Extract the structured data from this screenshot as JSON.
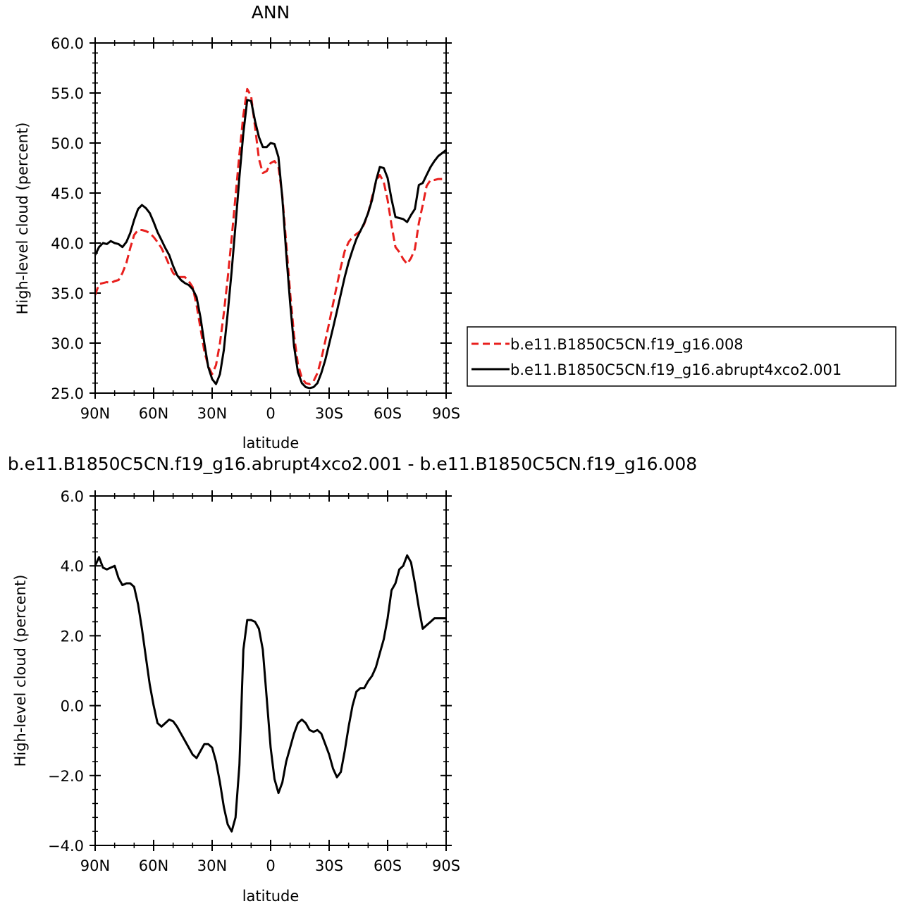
{
  "chart_data": [
    {
      "type": "line",
      "title": "ANN",
      "xlabel": "latitude",
      "ylabel": "High-level cloud (percent)",
      "xlim": [
        90,
        -90
      ],
      "ylim": [
        25,
        60
      ],
      "xticks": [
        90,
        60,
        30,
        0,
        -30,
        -60,
        -90
      ],
      "xtick_labels": [
        "90N",
        "60N",
        "30N",
        "0",
        "30S",
        "60S",
        "90S"
      ],
      "yticks": [
        25,
        30,
        35,
        40,
        45,
        50,
        55,
        60
      ],
      "ytick_labels": [
        "25.0",
        "30.0",
        "35.0",
        "40.0",
        "45.0",
        "50.0",
        "55.0",
        "60.0"
      ],
      "grid": false,
      "legend_position": "right",
      "series": [
        {
          "name": "b.e11.B1850C5CN.f19_g16.008",
          "color": "#e8201e",
          "dash": "dashed",
          "x": [
            90,
            88,
            86,
            84,
            82,
            80,
            78,
            76,
            74,
            72,
            70,
            68,
            66,
            64,
            62,
            60,
            58,
            56,
            54,
            52,
            50,
            48,
            46,
            44,
            42,
            40,
            38,
            36,
            34,
            32,
            30,
            28,
            26,
            24,
            22,
            20,
            18,
            16,
            14,
            12,
            10,
            8,
            6,
            4,
            2,
            0,
            -2,
            -4,
            -6,
            -8,
            -10,
            -12,
            -14,
            -16,
            -18,
            -20,
            -22,
            -24,
            -26,
            -28,
            -30,
            -32,
            -34,
            -36,
            -38,
            -40,
            -42,
            -44,
            -46,
            -48,
            -50,
            -52,
            -54,
            -56,
            -58,
            -60,
            -62,
            -64,
            -66,
            -68,
            -70,
            -72,
            -74,
            -76,
            -78,
            -80,
            -82,
            -84,
            -86,
            -88,
            -90
          ],
          "y": [
            34.8,
            35.9,
            36.0,
            36.1,
            36.0,
            36.2,
            36.3,
            37.0,
            38.0,
            39.5,
            40.8,
            41.3,
            41.3,
            41.2,
            41.0,
            40.6,
            40.1,
            39.5,
            38.7,
            37.8,
            37.0,
            36.6,
            36.6,
            36.6,
            36.2,
            35.6,
            33.8,
            31.5,
            29.2,
            27.7,
            26.9,
            27.8,
            30.0,
            33.0,
            36.5,
            40.5,
            44.7,
            48.9,
            52.8,
            55.4,
            54.7,
            51.6,
            48.4,
            47.0,
            47.2,
            48.0,
            48.2,
            47.6,
            44.7,
            40.0,
            35.0,
            30.8,
            27.9,
            26.5,
            26.0,
            25.9,
            26.2,
            27.0,
            28.4,
            30.2,
            32.0,
            33.9,
            35.8,
            37.6,
            39.2,
            40.1,
            40.6,
            40.9,
            41.2,
            41.9,
            43.0,
            44.6,
            46.1,
            46.8,
            46.1,
            44.3,
            41.8,
            39.6,
            39.1,
            38.4,
            37.9,
            38.5,
            39.4,
            42.0,
            43.8,
            45.7,
            46.3,
            46.3,
            46.4,
            46.4,
            46.4
          ]
        },
        {
          "name": "b.e11.B1850C5CN.f19_g16.abrupt4xco2.001",
          "color": "#000000",
          "dash": "solid",
          "x": [
            90,
            88,
            86,
            84,
            82,
            80,
            78,
            76,
            74,
            72,
            70,
            68,
            66,
            64,
            62,
            60,
            58,
            56,
            54,
            52,
            50,
            48,
            46,
            44,
            42,
            40,
            38,
            36,
            34,
            32,
            30,
            28,
            26,
            24,
            22,
            20,
            18,
            16,
            14,
            12,
            10,
            8,
            6,
            4,
            2,
            0,
            -2,
            -4,
            -6,
            -8,
            -10,
            -12,
            -14,
            -16,
            -18,
            -20,
            -22,
            -24,
            -26,
            -28,
            -30,
            -32,
            -34,
            -36,
            -38,
            -40,
            -42,
            -44,
            -46,
            -48,
            -50,
            -52,
            -54,
            -56,
            -58,
            -60,
            -62,
            -64,
            -66,
            -68,
            -70,
            -72,
            -74,
            -76,
            -78,
            -80,
            -82,
            -84,
            -86,
            -88,
            -90
          ],
          "y": [
            38.8,
            39.6,
            40.0,
            39.9,
            40.2,
            40.0,
            39.9,
            39.6,
            40.1,
            41.0,
            42.3,
            43.4,
            43.8,
            43.5,
            43.0,
            42.1,
            41.1,
            40.3,
            39.5,
            38.8,
            37.7,
            36.8,
            36.3,
            36.0,
            35.8,
            35.4,
            34.6,
            32.6,
            30.0,
            27.6,
            26.4,
            25.9,
            26.9,
            29.3,
            33.0,
            37.2,
            41.8,
            46.6,
            51.0,
            54.3,
            54.2,
            52.2,
            50.6,
            49.6,
            49.6,
            50.0,
            49.9,
            48.6,
            44.5,
            39.0,
            34.0,
            29.7,
            27.1,
            26.0,
            25.6,
            25.5,
            25.6,
            26.0,
            27.0,
            28.3,
            29.9,
            31.5,
            33.2,
            34.9,
            36.6,
            38.1,
            39.3,
            40.4,
            41.2,
            42.0,
            43.0,
            44.3,
            46.2,
            47.6,
            47.5,
            46.5,
            44.4,
            42.6,
            42.5,
            42.4,
            42.1,
            42.8,
            43.4,
            45.8,
            46.0,
            46.8,
            47.6,
            48.2,
            48.7,
            49.0,
            49.3
          ]
        }
      ]
    },
    {
      "type": "line",
      "title": "b.e11.B1850C5CN.f19_g16.abrupt4xco2.001 - b.e11.B1850C5CN.f19_g16.008",
      "xlabel": "latitude",
      "ylabel": "High-level cloud (percent)",
      "xlim": [
        90,
        -90
      ],
      "ylim": [
        -4,
        6
      ],
      "xticks": [
        90,
        60,
        30,
        0,
        -30,
        -60,
        -90
      ],
      "xtick_labels": [
        "90N",
        "60N",
        "30N",
        "0",
        "30S",
        "60S",
        "90S"
      ],
      "yticks": [
        -4,
        -2,
        0,
        2,
        4,
        6
      ],
      "ytick_labels": [
        "−4.0",
        "−2.0",
        "0.0",
        "2.0",
        "4.0",
        "6.0"
      ],
      "grid": false,
      "series": [
        {
          "color": "#000000",
          "dash": "solid",
          "x": [
            90,
            88,
            86,
            84,
            82,
            80,
            78,
            76,
            74,
            72,
            70,
            68,
            66,
            64,
            62,
            60,
            58,
            56,
            54,
            52,
            50,
            48,
            46,
            44,
            42,
            40,
            38,
            36,
            34,
            32,
            30,
            28,
            26,
            24,
            22,
            20,
            18,
            16,
            14,
            12,
            10,
            8,
            6,
            4,
            2,
            0,
            -2,
            -4,
            -6,
            -8,
            -10,
            -12,
            -14,
            -16,
            -18,
            -20,
            -22,
            -24,
            -26,
            -28,
            -30,
            -32,
            -34,
            -36,
            -38,
            -40,
            -42,
            -44,
            -46,
            -48,
            -50,
            -52,
            -54,
            -56,
            -58,
            -60,
            -62,
            -64,
            -66,
            -68,
            -70,
            -72,
            -74,
            -76,
            -78,
            -80,
            -82,
            -84,
            -86,
            -88,
            -90
          ],
          "y": [
            4.0,
            4.25,
            3.95,
            3.9,
            3.95,
            4.0,
            3.65,
            3.45,
            3.5,
            3.5,
            3.4,
            2.9,
            2.2,
            1.4,
            0.6,
            0.0,
            -0.5,
            -0.6,
            -0.5,
            -0.4,
            -0.45,
            -0.6,
            -0.8,
            -1.0,
            -1.2,
            -1.4,
            -1.5,
            -1.3,
            -1.1,
            -1.1,
            -1.2,
            -1.6,
            -2.2,
            -2.9,
            -3.4,
            -3.6,
            -3.2,
            -1.7,
            1.6,
            2.45,
            2.45,
            2.4,
            2.2,
            1.6,
            0.2,
            -1.2,
            -2.1,
            -2.5,
            -2.2,
            -1.6,
            -1.2,
            -0.8,
            -0.5,
            -0.4,
            -0.5,
            -0.7,
            -0.75,
            -0.7,
            -0.8,
            -1.1,
            -1.4,
            -1.8,
            -2.05,
            -1.9,
            -1.3,
            -0.6,
            0.0,
            0.4,
            0.5,
            0.5,
            0.7,
            0.85,
            1.1,
            1.5,
            1.9,
            2.5,
            3.3,
            3.5,
            3.9,
            4.0,
            4.3,
            4.1,
            3.5,
            2.8,
            2.2,
            2.3,
            2.4,
            2.5,
            2.5,
            2.5,
            2.5
          ]
        }
      ]
    }
  ]
}
